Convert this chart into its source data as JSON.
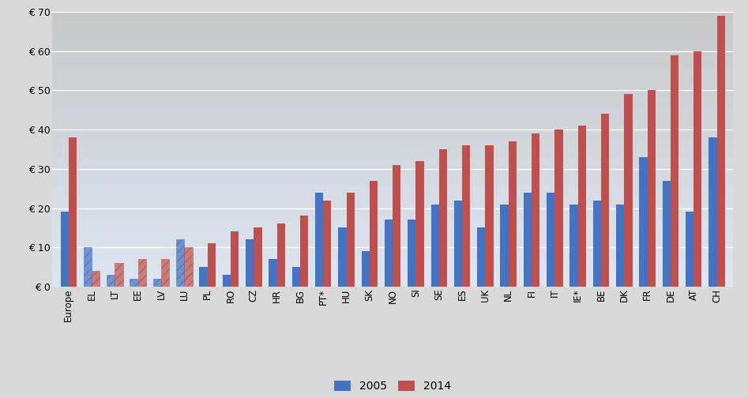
{
  "categories": [
    "Europe",
    "EL",
    "LT",
    "EE",
    "LV",
    "LU",
    "PL",
    "RO",
    "CZ",
    "HR",
    "BG",
    "PT*",
    "HU",
    "SK",
    "NO",
    "SI",
    "SE",
    "ES",
    "UK",
    "NL",
    "FI",
    "IT",
    "IE*",
    "BE",
    "DK",
    "FR",
    "DE",
    "AT",
    "CH"
  ],
  "values_2005": [
    19,
    10,
    3,
    2,
    2,
    12,
    5,
    3,
    12,
    7,
    5,
    24,
    15,
    9,
    17,
    17,
    21,
    22,
    15,
    21,
    24,
    24,
    21,
    22,
    21,
    33,
    27,
    19,
    38
  ],
  "values_2014": [
    38,
    4,
    6,
    7,
    7,
    10,
    11,
    14,
    15,
    16,
    18,
    22,
    24,
    27,
    31,
    32,
    35,
    36,
    36,
    37,
    39,
    40,
    41,
    44,
    49,
    50,
    59,
    60,
    69
  ],
  "hatched_categories": [
    "EL",
    "LT",
    "EE",
    "LV",
    "LU"
  ],
  "color_2005": "#4472C4",
  "color_2014": "#C0504D",
  "ylim": [
    0,
    70
  ],
  "yticks": [
    0,
    10,
    20,
    30,
    40,
    50,
    60,
    70
  ],
  "ytick_labels": [
    "€ 0",
    "€ 10",
    "€ 20",
    "€ 30",
    "€ 40",
    "€ 50",
    "€ 60",
    "€ 70"
  ],
  "legend_labels": [
    "2005",
    "2014"
  ],
  "bg_top": "#d0d0d0",
  "bg_bottom": "#dce6f1",
  "bg_fig": "#d9d9d9",
  "grid_color": "#ffffff",
  "bar_width": 0.35
}
